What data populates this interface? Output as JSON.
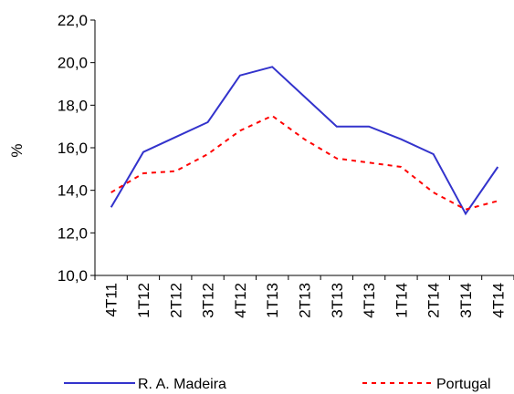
{
  "chart_data": {
    "type": "line",
    "title": "",
    "xlabel": "",
    "ylabel": "%",
    "ylim": [
      10,
      22
    ],
    "yticks": [
      "10,0",
      "12,0",
      "14,0",
      "16,0",
      "18,0",
      "20,0",
      "22,0"
    ],
    "categories": [
      "4T11",
      "1T12",
      "2T12",
      "3T12",
      "4T12",
      "1T13",
      "2T13",
      "3T13",
      "4T13",
      "1T14",
      "2T14",
      "3T14",
      "4T14"
    ],
    "series": [
      {
        "name": "R. A. Madeira",
        "values": [
          13.2,
          15.8,
          16.5,
          17.2,
          19.4,
          19.8,
          18.4,
          17.0,
          17.0,
          16.4,
          15.7,
          12.9,
          15.1
        ],
        "color": "#3333CC",
        "style": "solid"
      },
      {
        "name": "Portugal",
        "values": [
          13.9,
          14.8,
          14.9,
          15.7,
          16.8,
          17.5,
          16.4,
          15.5,
          15.3,
          15.1,
          13.9,
          13.1,
          13.5
        ],
        "color": "#FF0000",
        "style": "dashed"
      }
    ],
    "grid": false,
    "legend_position": "bottom"
  }
}
